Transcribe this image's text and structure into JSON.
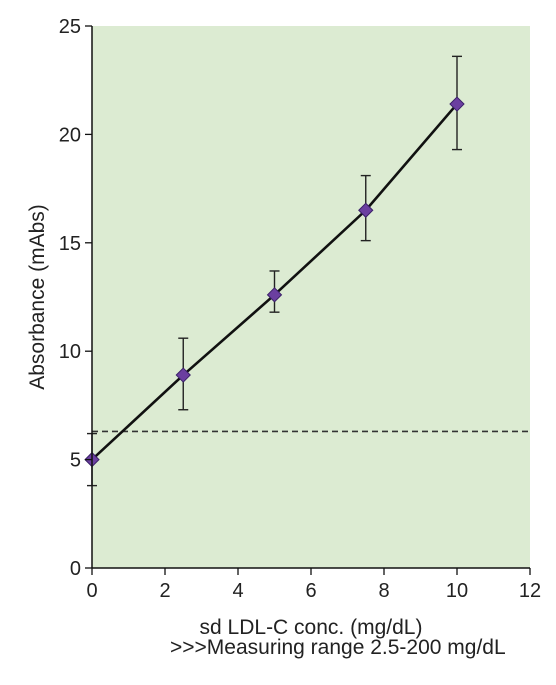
{
  "chart_data": {
    "type": "scatter",
    "xlabel": "sd LDL-C conc. (mg/dL)",
    "ylabel": "Absorbance (mAbs)",
    "xlim": [
      0,
      12
    ],
    "ylim": [
      0,
      25
    ],
    "x_ticks": [
      0,
      2,
      4,
      6,
      8,
      10,
      12
    ],
    "y_ticks": [
      0,
      5,
      10,
      15,
      20,
      25
    ],
    "grid": false,
    "legend": "none",
    "plot_background": "#dcebd2",
    "series": [
      {
        "x": [
          0,
          2.5,
          5,
          7.5,
          10
        ],
        "y": [
          5.0,
          8.9,
          12.6,
          16.5,
          21.4
        ],
        "error_low": [
          3.8,
          7.3,
          11.8,
          15.1,
          19.3
        ],
        "error_high": [
          6.2,
          10.6,
          13.7,
          18.1,
          23.6
        ],
        "marker": "diamond",
        "marker_color": "#6b3fa0",
        "line_color": "#111111"
      }
    ],
    "reference_line": {
      "y": 6.3,
      "style": "dashed",
      "color": "#333333"
    }
  },
  "footnote": ">>>Measuring range 2.5-200 mg/dL"
}
